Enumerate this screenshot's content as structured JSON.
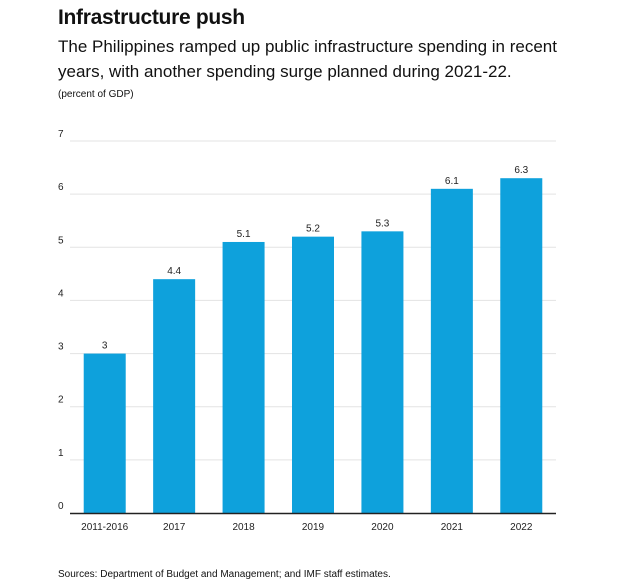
{
  "header": {
    "title": "Infrastructure push",
    "subtitle": "The Philippines ramped up public infrastructure spending in recent years, with another spending surge planned during 2021-22.",
    "unit": "(percent of GDP)"
  },
  "footer": {
    "source": "Sources:  Department of Budget and Management; and IMF staff estimates."
  },
  "colors": {
    "bar": "#0ea1dc",
    "grid": "#e3e3e3",
    "axis": "#222222"
  },
  "chart_data": {
    "type": "bar",
    "title": "Infrastructure push",
    "ylabel": "(percent of GDP)",
    "xlabel": "",
    "categories": [
      "2011-2016",
      "2017",
      "2018",
      "2019",
      "2020",
      "2021",
      "2022"
    ],
    "values": [
      3,
      4.4,
      5.1,
      5.2,
      5.3,
      6.1,
      6.3
    ],
    "ylim": [
      0,
      7
    ],
    "yticks": [
      0,
      1,
      2,
      3,
      4,
      5,
      6,
      7
    ],
    "grid": true,
    "legend": "none"
  }
}
